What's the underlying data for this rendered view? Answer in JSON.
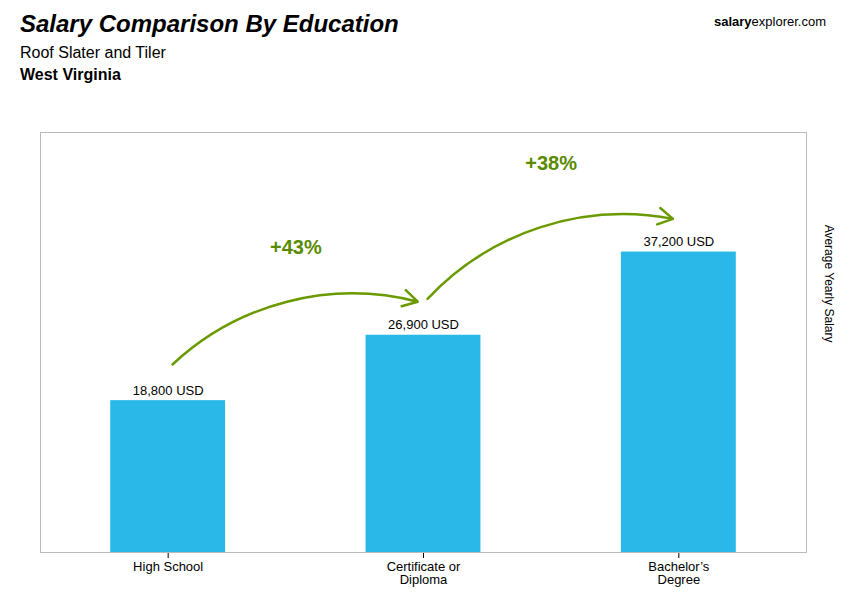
{
  "chart_data": {
    "type": "bar",
    "title": "Salary Comparison By Education",
    "subtitle": "Roof Slater and Tiler",
    "annotations": [
      {
        "text": "West Virginia"
      },
      {
        "text": "salary"
      },
      {
        "text": "explorer.com"
      },
      {
        "text": "+43%",
        "from": "High School",
        "to": "Certificate or\nDiploma"
      },
      {
        "text": "+38%",
        "from": "Certificate or\nDiploma",
        "to": "Bachelor’s\nDegree"
      }
    ],
    "categories": [
      "High School",
      "Certificate or\nDiploma",
      "Bachelor’s\nDegree"
    ],
    "values": [
      18800,
      26900,
      37200
    ],
    "value_labels": [
      "18,800 USD",
      "26,900 USD",
      "37,200 USD"
    ],
    "data_labels": true,
    "color": "#29b8e8",
    "ylabel": "Average Yearly Salary",
    "ylim": [
      0,
      52000
    ],
    "tick_labels": "x",
    "grid": false
  }
}
